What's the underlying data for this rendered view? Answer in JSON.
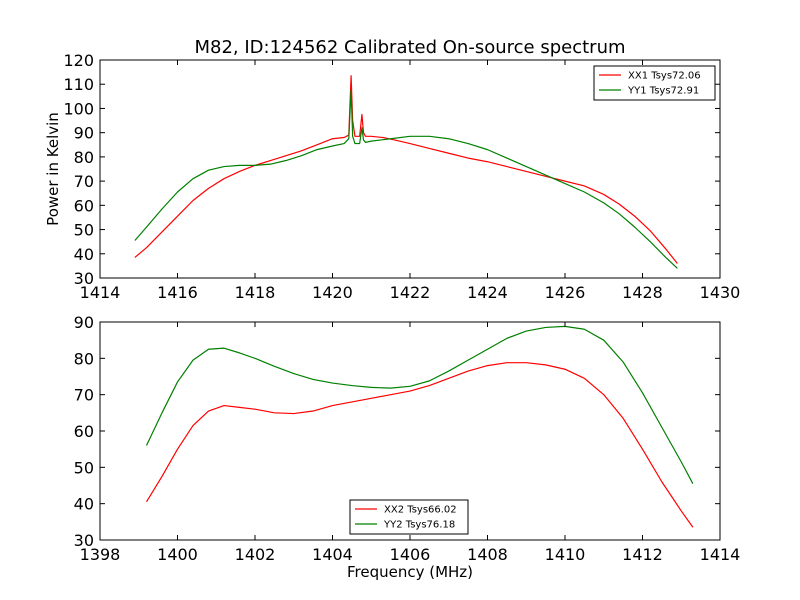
{
  "chart_data": [
    {
      "type": "line",
      "title": "M82, ID:124562 Calibrated On-source spectrum",
      "xlabel": "",
      "ylabel": "Power in Kelvin",
      "xlim": [
        1414,
        1430
      ],
      "ylim": [
        30,
        120
      ],
      "xticks": [
        "1414",
        "1416",
        "1418",
        "1420",
        "1422",
        "1424",
        "1426",
        "1428",
        "1430"
      ],
      "yticks": [
        "30",
        "40",
        "50",
        "60",
        "70",
        "80",
        "90",
        "100",
        "110",
        "120"
      ],
      "grid": false,
      "legend_position": "upper-right",
      "series": [
        {
          "name": "XX1 Tsys72.06",
          "color": "#ff0000",
          "x": [
            1414.9,
            1415.2,
            1415.6,
            1416.0,
            1416.4,
            1416.8,
            1417.2,
            1417.6,
            1418.0,
            1418.4,
            1418.8,
            1419.2,
            1419.6,
            1420.0,
            1420.3,
            1420.42,
            1420.48,
            1420.52,
            1420.58,
            1420.7,
            1420.76,
            1420.8,
            1420.85,
            1421.0,
            1421.3,
            1421.6,
            1422.0,
            1422.5,
            1423.0,
            1423.5,
            1424.0,
            1424.5,
            1425.0,
            1425.5,
            1426.0,
            1426.5,
            1427.0,
            1427.4,
            1427.8,
            1428.2,
            1428.6,
            1428.9
          ],
          "y": [
            38.5,
            42.5,
            49,
            55.5,
            62,
            67,
            71,
            74,
            76.5,
            78.5,
            80.5,
            82.5,
            85,
            87.5,
            88,
            89,
            113.5,
            95,
            88.5,
            88.5,
            97.5,
            90,
            88.5,
            88.5,
            88,
            87,
            85.5,
            83.5,
            81.5,
            79.5,
            78,
            76,
            74,
            72,
            70,
            68,
            64.5,
            60.5,
            55.5,
            49.5,
            42,
            36
          ]
        },
        {
          "name": "YY1 Tsys72.91",
          "color": "#008000",
          "x": [
            1414.9,
            1415.2,
            1415.6,
            1416.0,
            1416.4,
            1416.8,
            1417.2,
            1417.6,
            1418.0,
            1418.4,
            1418.8,
            1419.2,
            1419.6,
            1420.0,
            1420.3,
            1420.42,
            1420.48,
            1420.52,
            1420.58,
            1420.7,
            1420.76,
            1420.8,
            1420.85,
            1421.0,
            1421.5,
            1422.0,
            1422.5,
            1423.0,
            1423.5,
            1424.0,
            1424.5,
            1425.0,
            1425.5,
            1426.0,
            1426.5,
            1427.0,
            1427.4,
            1427.8,
            1428.2,
            1428.6,
            1428.9
          ],
          "y": [
            45.5,
            51,
            58.5,
            65.5,
            71,
            74.5,
            76,
            76.5,
            76.5,
            77,
            78.5,
            80.5,
            83,
            84.5,
            85.5,
            87.5,
            107.5,
            88.5,
            85.5,
            85.5,
            92,
            87,
            86,
            86.5,
            87.5,
            88.5,
            88.5,
            87.5,
            85.5,
            83,
            79.5,
            76,
            72.5,
            69,
            65.5,
            61,
            56.5,
            51,
            45,
            38.5,
            34
          ]
        }
      ]
    },
    {
      "type": "line",
      "title": "",
      "xlabel": "Frequency (MHz)",
      "ylabel": "",
      "xlim": [
        1398,
        1414
      ],
      "ylim": [
        30,
        90
      ],
      "xticks": [
        "1398",
        "1400",
        "1402",
        "1404",
        "1406",
        "1408",
        "1410",
        "1412",
        "1414"
      ],
      "yticks": [
        "30",
        "40",
        "50",
        "60",
        "70",
        "80",
        "90"
      ],
      "grid": false,
      "legend_position": "lower-center",
      "series": [
        {
          "name": "XX2 Tsys66.02",
          "color": "#ff0000",
          "x": [
            1399.2,
            1399.6,
            1400.0,
            1400.4,
            1400.8,
            1401.2,
            1401.6,
            1402.0,
            1402.5,
            1403.0,
            1403.5,
            1404.0,
            1404.5,
            1405.0,
            1405.5,
            1406.0,
            1406.5,
            1407.0,
            1407.5,
            1408.0,
            1408.5,
            1409.0,
            1409.5,
            1410.0,
            1410.5,
            1411.0,
            1411.5,
            1412.0,
            1412.5,
            1413.0,
            1413.3
          ],
          "y": [
            40.5,
            47.5,
            55,
            61.5,
            65.5,
            67,
            66.5,
            66,
            65,
            64.8,
            65.5,
            67,
            68,
            69,
            70,
            71,
            72.5,
            74.5,
            76.5,
            78,
            78.8,
            78.8,
            78.2,
            77,
            74.5,
            70,
            63.5,
            55,
            46,
            38,
            33.5
          ]
        },
        {
          "name": "YY2 Tsys76.18",
          "color": "#008000",
          "x": [
            1399.2,
            1399.6,
            1400.0,
            1400.4,
            1400.8,
            1401.2,
            1401.6,
            1402.0,
            1402.5,
            1403.0,
            1403.5,
            1404.0,
            1404.5,
            1405.0,
            1405.5,
            1406.0,
            1406.5,
            1407.0,
            1407.5,
            1408.0,
            1408.5,
            1409.0,
            1409.5,
            1410.0,
            1410.5,
            1411.0,
            1411.5,
            1412.0,
            1412.5,
            1413.0,
            1413.3
          ],
          "y": [
            56,
            65,
            73.5,
            79.5,
            82.5,
            82.8,
            81.5,
            80,
            77.8,
            75.8,
            74.2,
            73.2,
            72.5,
            72,
            71.8,
            72.3,
            73.8,
            76.5,
            79.5,
            82.5,
            85.5,
            87.5,
            88.5,
            88.8,
            88,
            85,
            79,
            70.5,
            61,
            51.5,
            45.5
          ]
        }
      ]
    }
  ]
}
